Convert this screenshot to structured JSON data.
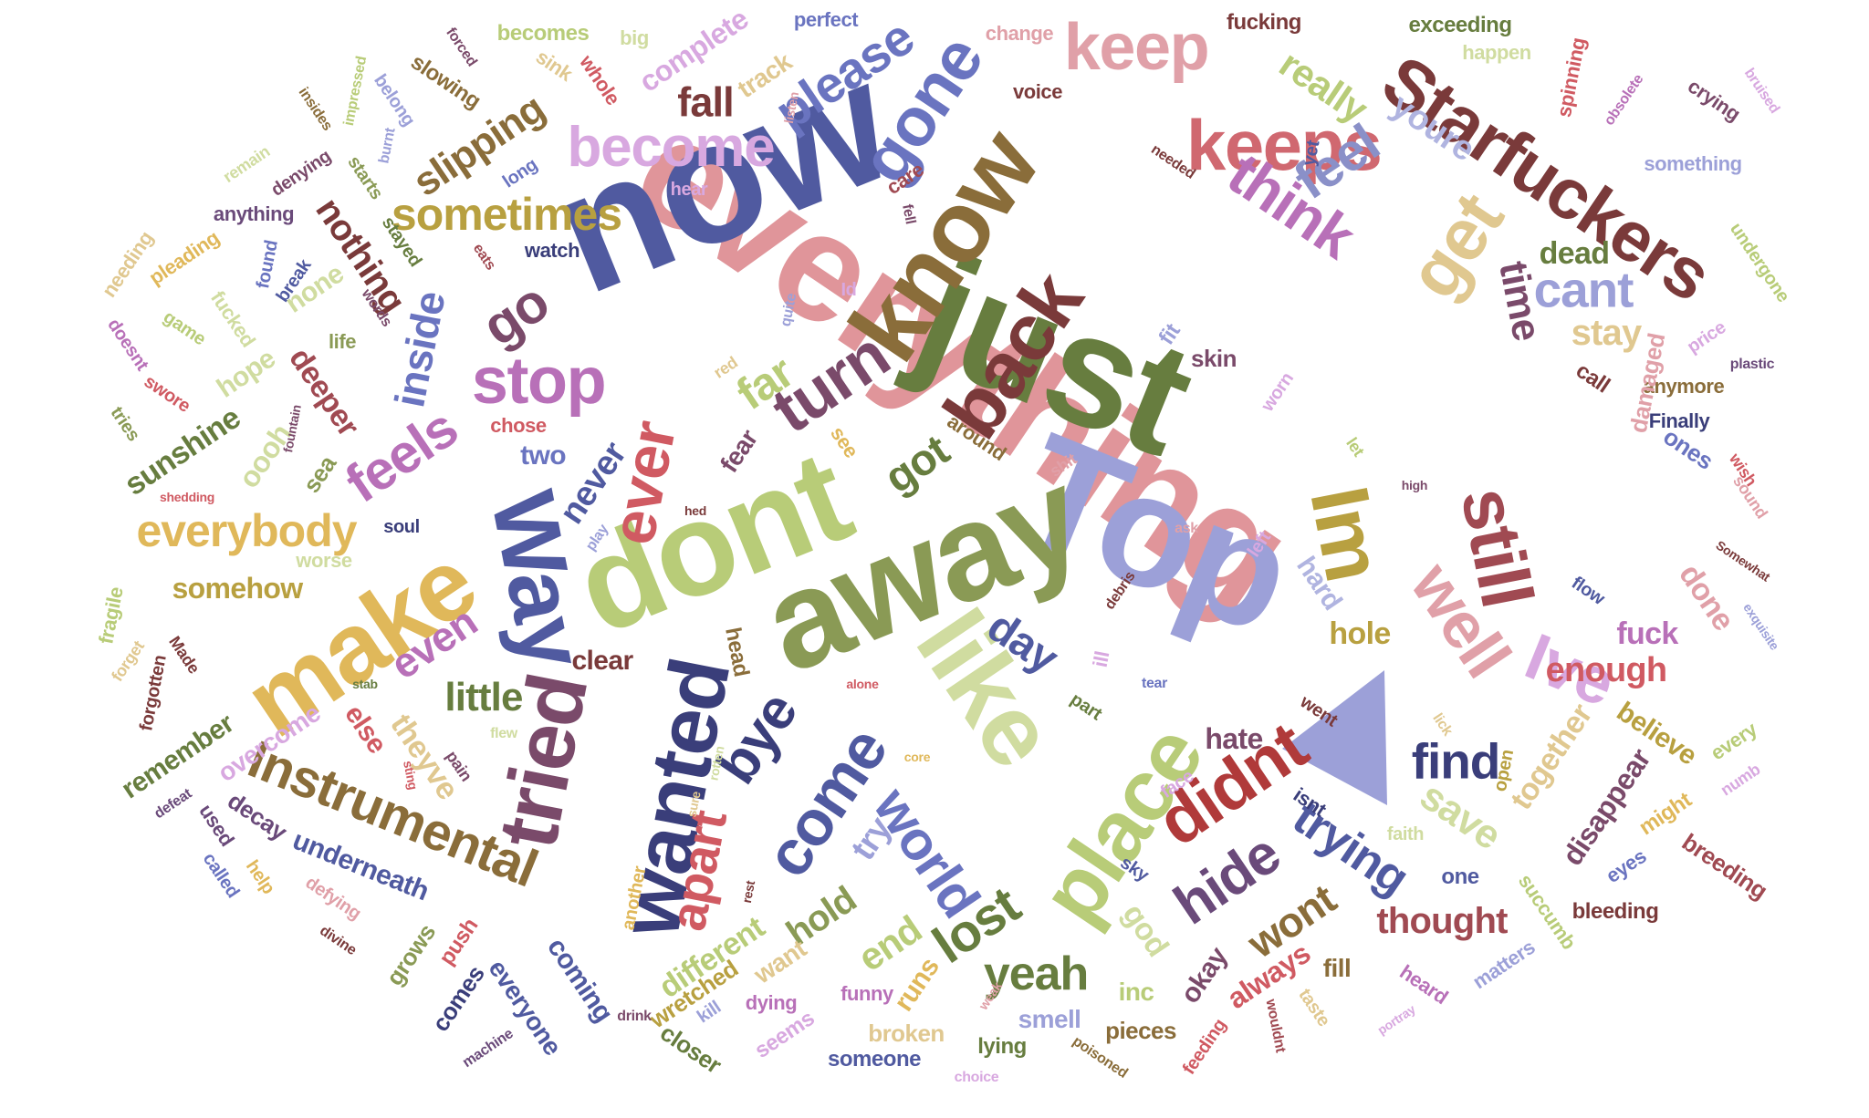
{
  "words": [
    {
      "text": "everything",
      "color": "#e0959a"
    },
    {
      "text": "now",
      "color": "#505aa0"
    },
    {
      "text": "just",
      "color": "#677d3f"
    },
    {
      "text": "Top",
      "color": "#9ca0d8"
    },
    {
      "text": "away",
      "color": "#8a9a55"
    },
    {
      "text": "dont",
      "color": "#b8cc78"
    },
    {
      "text": "know",
      "color": "#8a6d3a"
    },
    {
      "text": "Starfuckers",
      "color": "#7a3a3a"
    },
    {
      "text": "make",
      "color": "#e0b85a"
    },
    {
      "text": "like",
      "color": "#d0dca0"
    },
    {
      "text": "Way",
      "color": "#505aa0"
    },
    {
      "text": "tried",
      "color": "#7a4a6a"
    },
    {
      "text": "wanted",
      "color": "#3a3e7a"
    },
    {
      "text": "place",
      "color": "#b8cc78"
    },
    {
      "text": "back",
      "color": "#7a3a3a"
    },
    {
      "text": "Im",
      "color": "#b8a040"
    },
    {
      "text": "still",
      "color": "#a04a52"
    },
    {
      "text": "keeps",
      "color": "#d06870"
    },
    {
      "text": "keep",
      "color": "#e0a0a8"
    },
    {
      "text": "get",
      "color": "#e0c890"
    },
    {
      "text": "gone",
      "color": "#6a74c0"
    },
    {
      "text": "think",
      "color": "#b870b8"
    },
    {
      "text": "didnt",
      "color": "#b03a3a"
    },
    {
      "text": "Ive",
      "color": "#d8a8e0"
    },
    {
      "text": "well",
      "color": "#e0a0a8"
    },
    {
      "text": "become",
      "color": "#d8a8e0"
    },
    {
      "text": "ever",
      "color": "#d05a62"
    },
    {
      "text": "stop",
      "color": "#b870b8"
    },
    {
      "text": "turn",
      "color": "#7a4a6a"
    },
    {
      "text": "come",
      "color": "#505aa0"
    },
    {
      "text": "bye",
      "color": "#3a3e7a"
    },
    {
      "text": "Instrumental",
      "color": "#8a6d3a"
    },
    {
      "text": "sometimes",
      "color": "#b8a040"
    },
    {
      "text": "everybody",
      "color": "#e0b85a"
    },
    {
      "text": "feels",
      "color": "#b870b8"
    },
    {
      "text": "go",
      "color": "#7a4a6a"
    },
    {
      "text": "world",
      "color": "#6a74c0"
    },
    {
      "text": "hide",
      "color": "#6a4a7a"
    },
    {
      "text": "trying",
      "color": "#505aa0"
    },
    {
      "text": "lost",
      "color": "#677d3f"
    },
    {
      "text": "yeah",
      "color": "#677d3f"
    },
    {
      "text": "find",
      "color": "#3a3e7a"
    },
    {
      "text": "apart",
      "color": "#d05a62"
    },
    {
      "text": "feel",
      "color": "#8a90c8"
    },
    {
      "text": "cant",
      "color": "#9ca0d8"
    },
    {
      "text": "please",
      "color": "#6a74c0"
    },
    {
      "text": "fall",
      "color": "#7a3a3a"
    },
    {
      "text": "really",
      "color": "#b8cc78"
    },
    {
      "text": "youre",
      "color": "#b0b4e0"
    },
    {
      "text": "inside",
      "color": "#6a74c0"
    },
    {
      "text": "slipping",
      "color": "#8a6d3a"
    },
    {
      "text": "nothing",
      "color": "#7a3a3a"
    },
    {
      "text": "time",
      "color": "#7a4a6a"
    },
    {
      "text": "stay",
      "color": "#e0c890"
    },
    {
      "text": "dead",
      "color": "#677d3f"
    },
    {
      "text": "got",
      "color": "#677d3f"
    },
    {
      "text": "far",
      "color": "#b8cc78"
    },
    {
      "text": "day",
      "color": "#505aa0"
    },
    {
      "text": "even",
      "color": "#b870b8"
    },
    {
      "text": "little",
      "color": "#677d3f"
    },
    {
      "text": "never",
      "color": "#505aa0"
    },
    {
      "text": "deeper",
      "color": "#a04a52"
    },
    {
      "text": "sunshine",
      "color": "#677d3f"
    },
    {
      "text": "enough",
      "color": "#d05a62"
    },
    {
      "text": "fuck",
      "color": "#b870b8"
    },
    {
      "text": "hole",
      "color": "#b8a040"
    },
    {
      "text": "hard",
      "color": "#b0b4e0"
    },
    {
      "text": "done",
      "color": "#e0a0a8"
    },
    {
      "text": "hate",
      "color": "#7a4a6a"
    },
    {
      "text": "save",
      "color": "#d0dca0"
    },
    {
      "text": "together",
      "color": "#e0c890"
    },
    {
      "text": "believe",
      "color": "#b8a040"
    },
    {
      "text": "thought",
      "color": "#a04a52"
    },
    {
      "text": "wont",
      "color": "#8a6d3a"
    },
    {
      "text": "hold",
      "color": "#8a9a55"
    },
    {
      "text": "end",
      "color": "#b8cc78"
    },
    {
      "text": "try",
      "color": "#9ca0d8"
    },
    {
      "text": "god",
      "color": "#d0dca0"
    },
    {
      "text": "underneath",
      "color": "#505aa0"
    },
    {
      "text": "remember",
      "color": "#677d3f"
    },
    {
      "text": "overcome",
      "color": "#d8a8e0"
    },
    {
      "text": "theyve",
      "color": "#e0c890"
    },
    {
      "text": "else",
      "color": "#d05a62"
    },
    {
      "text": "clear",
      "color": "#7a3a3a"
    },
    {
      "text": "somehow",
      "color": "#b8a040"
    },
    {
      "text": "worse",
      "color": "#d0dca0"
    },
    {
      "text": "hope",
      "color": "#d0dca0"
    },
    {
      "text": "oooh",
      "color": "#d0dca0"
    },
    {
      "text": "none",
      "color": "#d0dca0"
    },
    {
      "text": "life",
      "color": "#8a9a55"
    },
    {
      "text": "sea",
      "color": "#8a9a55"
    },
    {
      "text": "two",
      "color": "#6a74c0"
    },
    {
      "text": "fear",
      "color": "#7a4a6a"
    },
    {
      "text": "soul",
      "color": "#3a3e7a"
    },
    {
      "text": "different",
      "color": "#b8cc78"
    },
    {
      "text": "coming",
      "color": "#505aa0"
    },
    {
      "text": "everyone",
      "color": "#505aa0"
    },
    {
      "text": "want",
      "color": "#e0c890"
    },
    {
      "text": "runs",
      "color": "#e0b85a"
    },
    {
      "text": "smell",
      "color": "#9ca0d8"
    },
    {
      "text": "inc",
      "color": "#b8cc78"
    },
    {
      "text": "okay",
      "color": "#7a4a6a"
    },
    {
      "text": "always",
      "color": "#d05a62"
    },
    {
      "text": "fill",
      "color": "#8a6d3a"
    },
    {
      "text": "pieces",
      "color": "#8a6d3a"
    },
    {
      "text": "broken",
      "color": "#e0c890"
    },
    {
      "text": "someone",
      "color": "#505aa0"
    },
    {
      "text": "lying",
      "color": "#677d3f"
    },
    {
      "text": "seems",
      "color": "#d8a8e0"
    },
    {
      "text": "dying",
      "color": "#b870b8"
    },
    {
      "text": "funny",
      "color": "#b870b8"
    },
    {
      "text": "wretched",
      "color": "#b8a040"
    },
    {
      "text": "closer",
      "color": "#677d3f"
    },
    {
      "text": "comes",
      "color": "#3a3e7a"
    },
    {
      "text": "grows",
      "color": "#8a9a55"
    },
    {
      "text": "push",
      "color": "#d05a62"
    },
    {
      "text": "kill",
      "color": "#9ca0d8"
    },
    {
      "text": "drink",
      "color": "#7a4a6a"
    },
    {
      "text": "machine",
      "color": "#6a4a7a"
    },
    {
      "text": "divine",
      "color": "#7a3a3a"
    },
    {
      "text": "defying",
      "color": "#e0a0a8"
    },
    {
      "text": "decay",
      "color": "#6a4a7a"
    },
    {
      "text": "used",
      "color": "#6a4a7a"
    },
    {
      "text": "called",
      "color": "#6a74c0"
    },
    {
      "text": "help",
      "color": "#e0b85a"
    },
    {
      "text": "defeat",
      "color": "#6a4a7a"
    },
    {
      "text": "forgotten",
      "color": "#7a3a3a"
    },
    {
      "text": "forget",
      "color": "#e0c890"
    },
    {
      "text": "fragile",
      "color": "#b8cc78"
    },
    {
      "text": "Made",
      "color": "#7a3a3a"
    },
    {
      "text": "swore",
      "color": "#d05a62"
    },
    {
      "text": "tries",
      "color": "#8a9a55"
    },
    {
      "text": "doesnt",
      "color": "#b870b8"
    },
    {
      "text": "game",
      "color": "#b8cc78"
    },
    {
      "text": "fucked",
      "color": "#d0dca0"
    },
    {
      "text": "found",
      "color": "#6a74c0"
    },
    {
      "text": "break",
      "color": "#505aa0"
    },
    {
      "text": "needing",
      "color": "#e0c890"
    },
    {
      "text": "pleading",
      "color": "#e0b85a"
    },
    {
      "text": "anything",
      "color": "#6a4a7a"
    },
    {
      "text": "remain",
      "color": "#d0dca0"
    },
    {
      "text": "denying",
      "color": "#7a4a6a"
    },
    {
      "text": "starts",
      "color": "#8a9a55"
    },
    {
      "text": "stayed",
      "color": "#677d3f"
    },
    {
      "text": "words",
      "color": "#7a4a6a"
    },
    {
      "text": "watch",
      "color": "#3a3e7a"
    },
    {
      "text": "eats",
      "color": "#a04a52"
    },
    {
      "text": "hear",
      "color": "#d8a8e0"
    },
    {
      "text": "long",
      "color": "#6a74c0"
    },
    {
      "text": "burnt",
      "color": "#9ca0d8"
    },
    {
      "text": "belong",
      "color": "#9ca0d8"
    },
    {
      "text": "impressed",
      "color": "#b8cc78"
    },
    {
      "text": "insides",
      "color": "#8a6d3a"
    },
    {
      "text": "slowing",
      "color": "#8a6d3a"
    },
    {
      "text": "forced",
      "color": "#7a4a6a"
    },
    {
      "text": "sink",
      "color": "#e0c890"
    },
    {
      "text": "becomes",
      "color": "#b8cc78"
    },
    {
      "text": "whole",
      "color": "#d05a62"
    },
    {
      "text": "big",
      "color": "#d0dca0"
    },
    {
      "text": "complete",
      "color": "#d8a8e0"
    },
    {
      "text": "track",
      "color": "#e0c890"
    },
    {
      "text": "perfect",
      "color": "#6a74c0"
    },
    {
      "text": "listen",
      "color": "#e0a0a8"
    },
    {
      "text": "change",
      "color": "#e0a0a8"
    },
    {
      "text": "voice",
      "color": "#7a3a3a"
    },
    {
      "text": "care",
      "color": "#a04a52"
    },
    {
      "text": "fell",
      "color": "#7a4a6a"
    },
    {
      "text": "quite",
      "color": "#9ca0d8"
    },
    {
      "text": "Id",
      "color": "#d8a8e0"
    },
    {
      "text": "red",
      "color": "#e0c890"
    },
    {
      "text": "chose",
      "color": "#d05a62"
    },
    {
      "text": "see",
      "color": "#e0b85a"
    },
    {
      "text": "around",
      "color": "#8a6d3a"
    },
    {
      "text": "skin",
      "color": "#7a4a6a"
    },
    {
      "text": "fit",
      "color": "#9ca0d8"
    },
    {
      "text": "worn",
      "color": "#d8a8e0"
    },
    {
      "text": "shit",
      "color": "#e0a0a8"
    },
    {
      "text": "needed",
      "color": "#7a3a3a"
    },
    {
      "text": "fucking",
      "color": "#7a3a3a"
    },
    {
      "text": "exceeding",
      "color": "#677d3f"
    },
    {
      "text": "happen",
      "color": "#d0dca0"
    },
    {
      "text": "obsolete",
      "color": "#b870b8"
    },
    {
      "text": "spinning",
      "color": "#d05a62"
    },
    {
      "text": "crying",
      "color": "#7a4a6a"
    },
    {
      "text": "bruised",
      "color": "#d8a8e0"
    },
    {
      "text": "something",
      "color": "#9ca0d8"
    },
    {
      "text": "undergone",
      "color": "#b8cc78"
    },
    {
      "text": "price",
      "color": "#d8a8e0"
    },
    {
      "text": "plastic",
      "color": "#6a4a7a"
    },
    {
      "text": "anymore",
      "color": "#8a6d3a"
    },
    {
      "text": "Finally",
      "color": "#3a3e7a"
    },
    {
      "text": "ones",
      "color": "#6a74c0"
    },
    {
      "text": "call",
      "color": "#7a3a3a"
    },
    {
      "text": "damaged",
      "color": "#e0a0a8"
    },
    {
      "text": "wish",
      "color": "#d05a62"
    },
    {
      "text": "sound",
      "color": "#e0a0a8"
    },
    {
      "text": "Somewhat",
      "color": "#7a3a3a"
    },
    {
      "text": "exquisite",
      "color": "#9ca0d8"
    },
    {
      "text": "flow",
      "color": "#505aa0"
    },
    {
      "text": "high",
      "color": "#7a4a6a"
    },
    {
      "text": "ask",
      "color": "#e0a0a8"
    },
    {
      "text": "left",
      "color": "#d8a8e0"
    },
    {
      "text": "debris",
      "color": "#7a3a3a"
    },
    {
      "text": "let",
      "color": "#b8cc78"
    },
    {
      "text": "yet",
      "color": "#505aa0"
    },
    {
      "text": "ill",
      "color": "#d8a8e0"
    },
    {
      "text": "tear",
      "color": "#6a74c0"
    },
    {
      "text": "part",
      "color": "#677d3f"
    },
    {
      "text": "went",
      "color": "#7a3a3a"
    },
    {
      "text": "lick",
      "color": "#e0c890"
    },
    {
      "text": "open",
      "color": "#b8a040"
    },
    {
      "text": "every",
      "color": "#b8cc78"
    },
    {
      "text": "numb",
      "color": "#d8a8e0"
    },
    {
      "text": "disappear",
      "color": "#7a4a6a"
    },
    {
      "text": "might",
      "color": "#e0b85a"
    },
    {
      "text": "breeding",
      "color": "#a04a52"
    },
    {
      "text": "eyes",
      "color": "#6a74c0"
    },
    {
      "text": "succumb",
      "color": "#b8cc78"
    },
    {
      "text": "bleeding",
      "color": "#7a3a3a"
    },
    {
      "text": "matters",
      "color": "#9ca0d8"
    },
    {
      "text": "heard",
      "color": "#b870b8"
    },
    {
      "text": "taste",
      "color": "#e0c890"
    },
    {
      "text": "wouldnt",
      "color": "#a04a52"
    },
    {
      "text": "portray",
      "color": "#d8a8e0"
    },
    {
      "text": "feeding",
      "color": "#d05a62"
    },
    {
      "text": "poisoned",
      "color": "#8a6d3a"
    },
    {
      "text": "choice",
      "color": "#d8a8e0"
    },
    {
      "text": "isnt",
      "color": "#3a3e7a"
    },
    {
      "text": "one",
      "color": "#505aa0"
    },
    {
      "text": "faith",
      "color": "#d0dca0"
    },
    {
      "text": "sky",
      "color": "#505aa0"
    },
    {
      "text": "face",
      "color": "#d8a8e0"
    },
    {
      "text": "head",
      "color": "#8a6d3a"
    },
    {
      "text": "alone",
      "color": "#d05a62"
    },
    {
      "text": "stab",
      "color": "#677d3f"
    },
    {
      "text": "flew",
      "color": "#d0dca0"
    },
    {
      "text": "core",
      "color": "#e0b85a"
    },
    {
      "text": "sure",
      "color": "#e0c890"
    },
    {
      "text": "rotten",
      "color": "#d0dca0"
    },
    {
      "text": "rest",
      "color": "#7a3a3a"
    },
    {
      "text": "another",
      "color": "#e0b85a"
    },
    {
      "text": "pain",
      "color": "#7a4a6a"
    },
    {
      "text": "sting",
      "color": "#d05a62"
    },
    {
      "text": "fountain",
      "color": "#7a4a6a"
    },
    {
      "text": "shedding",
      "color": "#d05a62"
    },
    {
      "text": "play",
      "color": "#9ca0d8"
    },
    {
      "text": "hed",
      "color": "#7a3a3a"
    },
    {
      "text": "weak",
      "color": "#e0a0a8"
    }
  ]
}
